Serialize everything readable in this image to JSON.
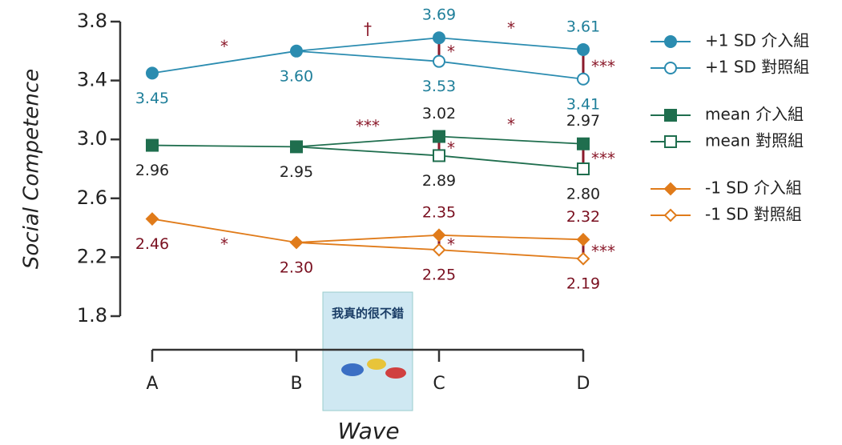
{
  "chart_data": {
    "type": "line",
    "x_label": "Wave",
    "y_label": "Social Competence",
    "categories": [
      "A",
      "B",
      "C",
      "D"
    ],
    "ylim": [
      1.8,
      3.8
    ],
    "yticks": [
      1.8,
      2.2,
      2.6,
      {
        "value": 3,
        "label": "3.0"
      },
      3.4,
      3.8
    ],
    "annotation_color": "#8b1a2b",
    "series": [
      {
        "name": "+1 SD 介入組",
        "color": "#2b8cb0",
        "label_color": "#1f7f9a",
        "marker": "circle",
        "filled": true,
        "values": [
          3.45,
          3.6,
          3.69,
          3.61
        ],
        "value_labels": [
          "3.45",
          "3.60",
          "3.69",
          "3.61"
        ],
        "trend_marks": [
          "*",
          "†",
          "*"
        ],
        "diff_marks": [
          null,
          null,
          "*",
          "***"
        ]
      },
      {
        "name": "+1 SD 對照組",
        "color": "#2b8cb0",
        "label_color": "#1f7f9a",
        "marker": "circle",
        "filled": false,
        "values": [
          null,
          3.6,
          3.53,
          3.41
        ],
        "value_labels": [
          null,
          null,
          "3.53",
          "3.41"
        ]
      },
      {
        "name": "mean 介入組",
        "color": "#1f6e4e",
        "label_color": "#222222",
        "marker": "square",
        "filled": true,
        "values": [
          2.96,
          2.95,
          3.02,
          2.97
        ],
        "value_labels": [
          "2.96",
          "2.95",
          "3.02",
          "2.97"
        ],
        "trend_marks": [
          null,
          "***",
          "*"
        ],
        "diff_marks": [
          null,
          null,
          "*",
          "***"
        ]
      },
      {
        "name": "mean 對照組",
        "color": "#1f6e4e",
        "label_color": "#222222",
        "marker": "square",
        "filled": false,
        "values": [
          null,
          2.95,
          2.89,
          2.8
        ],
        "value_labels": [
          null,
          null,
          "2.89",
          "2.80"
        ]
      },
      {
        "name": "-1 SD 介入組",
        "color": "#e07b1a",
        "label_color": "#7a1020",
        "marker": "diamond",
        "filled": true,
        "values": [
          2.46,
          2.3,
          2.35,
          2.32
        ],
        "value_labels": [
          "2.46",
          "2.30",
          "2.35",
          "2.32"
        ],
        "trend_marks": [
          "*",
          null,
          null
        ],
        "diff_marks": [
          null,
          null,
          "*",
          "***"
        ]
      },
      {
        "name": "-1 SD 對照組",
        "color": "#e07b1a",
        "label_color": "#7a1020",
        "marker": "diamond",
        "filled": false,
        "values": [
          null,
          2.3,
          2.25,
          2.19
        ],
        "value_labels": [
          null,
          null,
          "2.25",
          "2.19"
        ]
      }
    ]
  },
  "cover": {
    "title": "我真的很不錯"
  }
}
